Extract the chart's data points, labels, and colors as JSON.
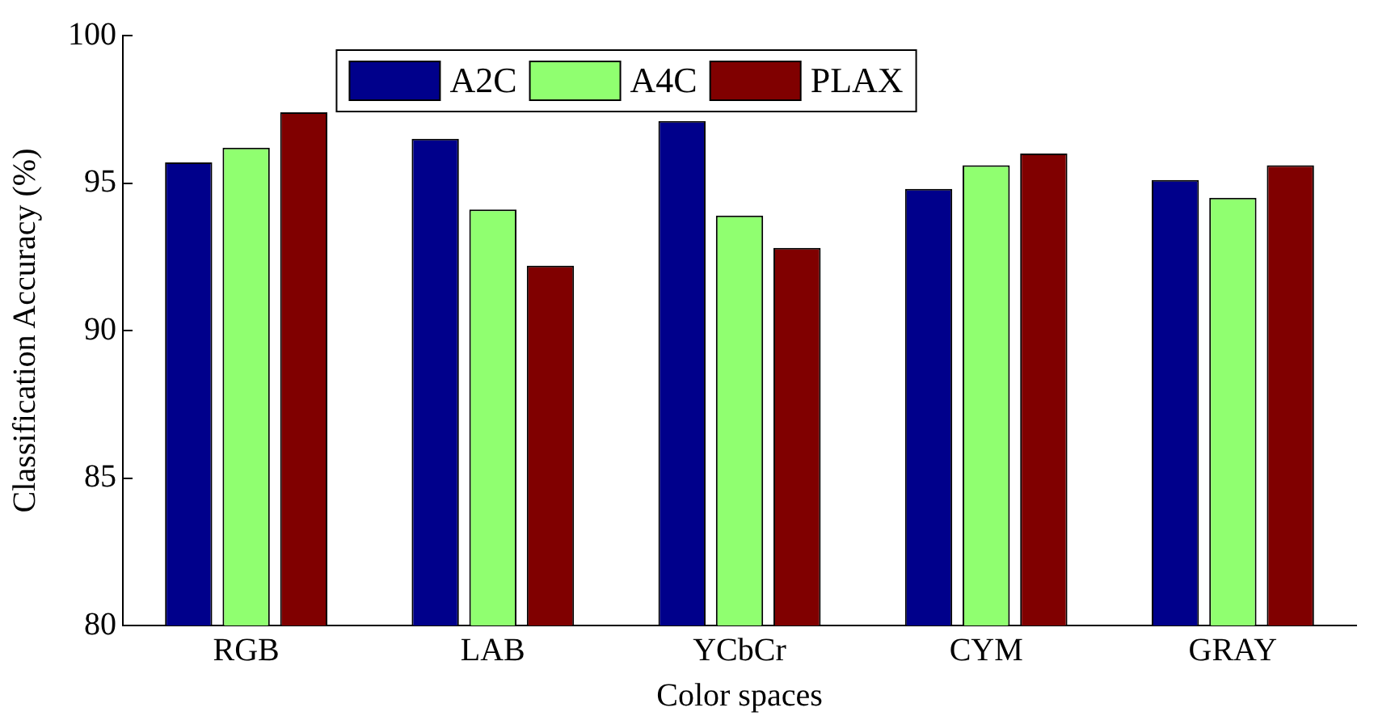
{
  "chart_data": {
    "type": "bar",
    "xlabel": "Color spaces",
    "ylabel": "Classification Accuracy (%)",
    "categories": [
      "RGB",
      "LAB",
      "YCbCr",
      "CYM",
      "GRAY"
    ],
    "series": [
      {
        "name": "A2C",
        "color": "#00008b",
        "values": [
          95.7,
          96.5,
          97.1,
          94.8,
          95.1
        ]
      },
      {
        "name": "A4C",
        "color": "#90ff70",
        "values": [
          96.2,
          94.1,
          93.9,
          95.6,
          94.5
        ]
      },
      {
        "name": "PLAX",
        "color": "#800000",
        "values": [
          97.4,
          92.2,
          92.8,
          96.0,
          95.6
        ]
      }
    ],
    "ylim": [
      80,
      100
    ],
    "yticks": [
      80,
      85,
      90,
      95,
      100
    ],
    "grid": false,
    "legend": "top"
  }
}
